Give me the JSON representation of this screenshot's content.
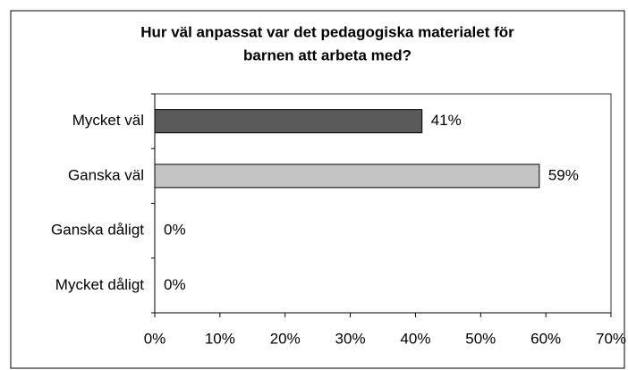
{
  "chart_data": {
    "type": "bar",
    "orientation": "horizontal",
    "title": [
      "Hur väl anpassat var det pedagogiska materialet för",
      "barnen att arbeta med?"
    ],
    "categories": [
      "Mycket väl",
      "Ganska väl",
      "Ganska dåligt",
      "Mycket dåligt"
    ],
    "values": [
      41,
      59,
      0,
      0
    ],
    "value_labels": [
      "41%",
      "59%",
      "0%",
      "0%"
    ],
    "colors": [
      "#5a5a5a",
      "#c4c4c4",
      "#c4c4c4",
      "#c4c4c4"
    ],
    "xlim": [
      0,
      70
    ],
    "xticks": [
      {
        "value": 0,
        "label": "0%"
      },
      {
        "value": 10,
        "label": "10%"
      },
      {
        "value": 20,
        "label": "20%"
      },
      {
        "value": 30,
        "label": "30%"
      },
      {
        "value": 40,
        "label": "40%"
      },
      {
        "value": 50,
        "label": "50%"
      },
      {
        "value": 60,
        "label": "60%"
      },
      {
        "value": 70,
        "label": "70%"
      }
    ],
    "grid": false
  }
}
